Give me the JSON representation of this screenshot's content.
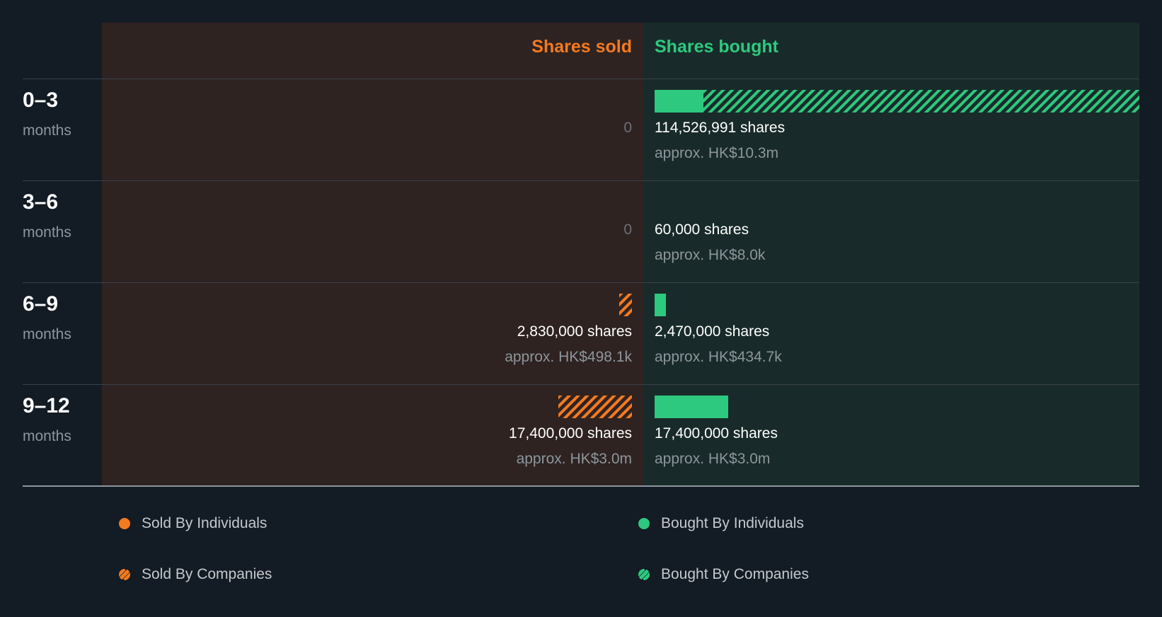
{
  "header": {
    "sold": "Shares sold",
    "bought": "Shares bought"
  },
  "colors": {
    "sold": "#f47a20",
    "bought": "#2dc97e"
  },
  "chart_data": {
    "type": "bar",
    "categories": [
      "0–3 months",
      "3–6 months",
      "6–9 months",
      "9–12 months"
    ],
    "max_shares": 114526991,
    "rows": [
      {
        "period": "0–3",
        "unit": "months",
        "sold": {
          "individuals": 0,
          "companies": 0,
          "label": "0"
        },
        "bought": {
          "individuals": 11500000,
          "companies": 103026991,
          "shares": "114,526,991 shares",
          "approx": "approx. HK$10.3m"
        }
      },
      {
        "period": "3–6",
        "unit": "months",
        "sold": {
          "individuals": 0,
          "companies": 0,
          "label": "0"
        },
        "bought": {
          "individuals": 60000,
          "companies": 0,
          "shares": "60,000 shares",
          "approx": "approx. HK$8.0k"
        }
      },
      {
        "period": "6–9",
        "unit": "months",
        "sold": {
          "individuals": 0,
          "companies": 2830000,
          "shares": "2,830,000 shares",
          "approx": "approx. HK$498.1k"
        },
        "bought": {
          "individuals": 2470000,
          "companies": 0,
          "shares": "2,470,000 shares",
          "approx": "approx. HK$434.7k"
        }
      },
      {
        "period": "9–12",
        "unit": "months",
        "sold": {
          "individuals": 0,
          "companies": 17400000,
          "shares": "17,400,000 shares",
          "approx": "approx. HK$3.0m"
        },
        "bought": {
          "individuals": 17400000,
          "companies": 0,
          "shares": "17,400,000 shares",
          "approx": "approx. HK$3.0m"
        }
      }
    ],
    "legend": [
      {
        "label": "Sold By Individuals",
        "kind": "sold",
        "style": "solid"
      },
      {
        "label": "Bought By Individuals",
        "kind": "bought",
        "style": "solid"
      },
      {
        "label": "Sold By Companies",
        "kind": "sold",
        "style": "hatched"
      },
      {
        "label": "Bought By Companies",
        "kind": "bought",
        "style": "hatched"
      }
    ]
  }
}
